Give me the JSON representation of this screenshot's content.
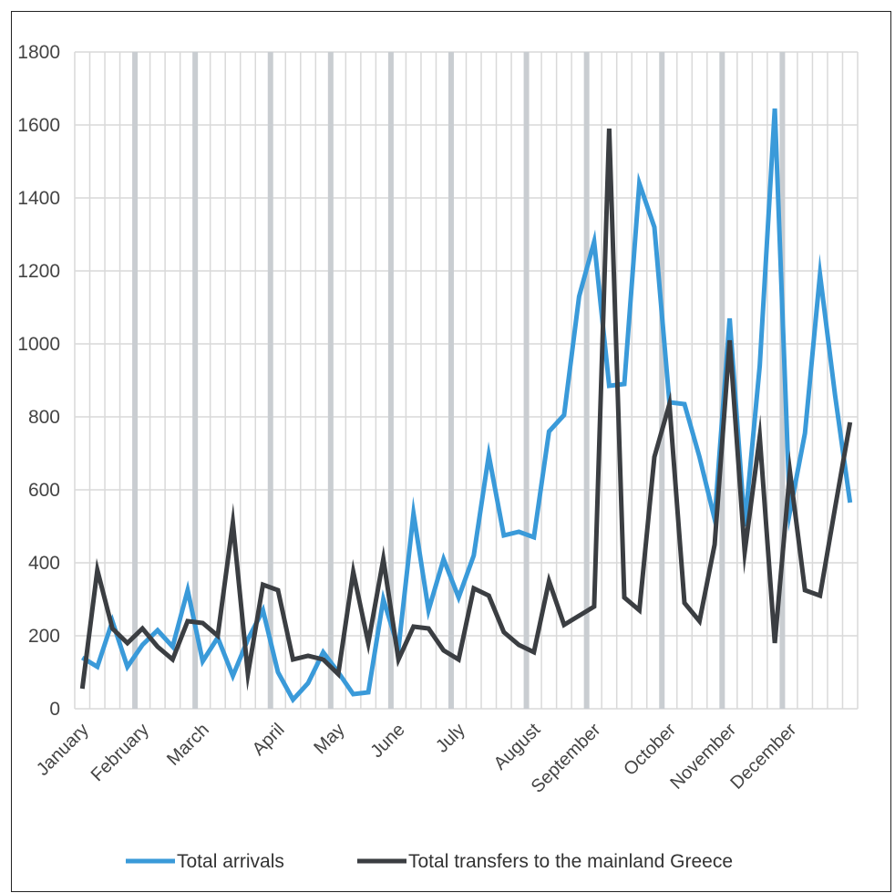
{
  "chart_data": {
    "type": "line",
    "title": "",
    "xlabel": "",
    "ylabel": "",
    "ylim": [
      0,
      1800
    ],
    "yticks": [
      0,
      200,
      400,
      600,
      800,
      1000,
      1200,
      1400,
      1600,
      1800
    ],
    "weeks_per_year": 52,
    "month_labels": [
      "January",
      "February",
      "March",
      "April",
      "May",
      "June",
      "July",
      "August",
      "September",
      "October",
      "November",
      "December"
    ],
    "month_start_weeks": [
      1,
      5,
      9,
      14,
      18,
      22,
      26,
      31,
      35,
      40,
      44,
      48
    ],
    "grid": "on",
    "legend_position": "bottom",
    "series": [
      {
        "name": "Total arrivals",
        "color": "#3a9ad9",
        "values": [
          140,
          115,
          240,
          115,
          175,
          215,
          170,
          325,
          130,
          195,
          90,
          190,
          270,
          100,
          25,
          70,
          155,
          100,
          40,
          45,
          300,
          165,
          535,
          270,
          410,
          305,
          420,
          695,
          475,
          485,
          470,
          760,
          805,
          1130,
          1280,
          885,
          890,
          1440,
          1320,
          840,
          835,
          690,
          520,
          1070,
          500,
          940,
          1645,
          540,
          755,
          1190,
          860,
          565
        ]
      },
      {
        "name": "Total transfers to the mainland Greece",
        "color": "#3b3e42",
        "values": [
          55,
          380,
          220,
          180,
          220,
          170,
          135,
          240,
          235,
          200,
          510,
          95,
          340,
          325,
          135,
          145,
          135,
          95,
          375,
          180,
          410,
          135,
          225,
          220,
          160,
          135,
          330,
          310,
          210,
          175,
          155,
          350,
          230,
          255,
          280,
          1590,
          305,
          270,
          690,
          835,
          290,
          240,
          450,
          1010,
          430,
          745,
          180,
          650,
          325,
          310,
          550,
          785
        ]
      }
    ]
  }
}
